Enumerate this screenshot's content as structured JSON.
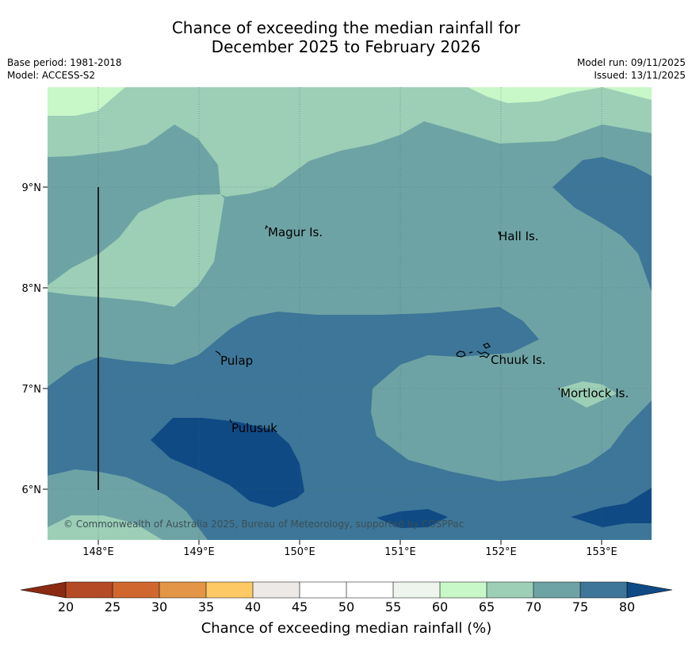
{
  "title": {
    "line1": "Chance of exceeding the median rainfall for",
    "line2": "December 2025 to February 2026"
  },
  "meta": {
    "base_period": "Base period: 1981-2018",
    "model": "Model: ACCESS-S2",
    "model_run": "Model run: 09/11/2025",
    "issued": "Issued: 13/11/2025"
  },
  "map": {
    "lon_ticks": [
      "148°E",
      "149°E",
      "150°E",
      "151°E",
      "152°E",
      "153°E"
    ],
    "lat_ticks": [
      "9°N",
      "8°N",
      "7°N",
      "6°N"
    ],
    "places": [
      {
        "name": "Magur Is."
      },
      {
        "name": "Hall Is."
      },
      {
        "name": "Pulap"
      },
      {
        "name": "Chuuk Is."
      },
      {
        "name": "Mortlock Is."
      },
      {
        "name": "Pulusuk"
      }
    ],
    "copyright": "© Commonwealth of Australia 2025, Bureau of Meteorology, supported by COSPPac"
  },
  "colorbar": {
    "title": "Chance of exceeding median rainfall (%)",
    "ticks": [
      "20",
      "25",
      "30",
      "35",
      "40",
      "45",
      "50",
      "55",
      "60",
      "65",
      "70",
      "75",
      "80"
    ],
    "low_extend_color": "#8a2a12",
    "high_extend_color": "#0f4a85",
    "bin_colors": [
      "#b54a26",
      "#d0672f",
      "#e39645",
      "#fdc965",
      "#ece9e6",
      "#ffffff",
      "#ffffff",
      "#edf5ec",
      "#c8f7c8",
      "#9ccfb6",
      "#6ea3a5",
      "#3d7698"
    ]
  }
}
